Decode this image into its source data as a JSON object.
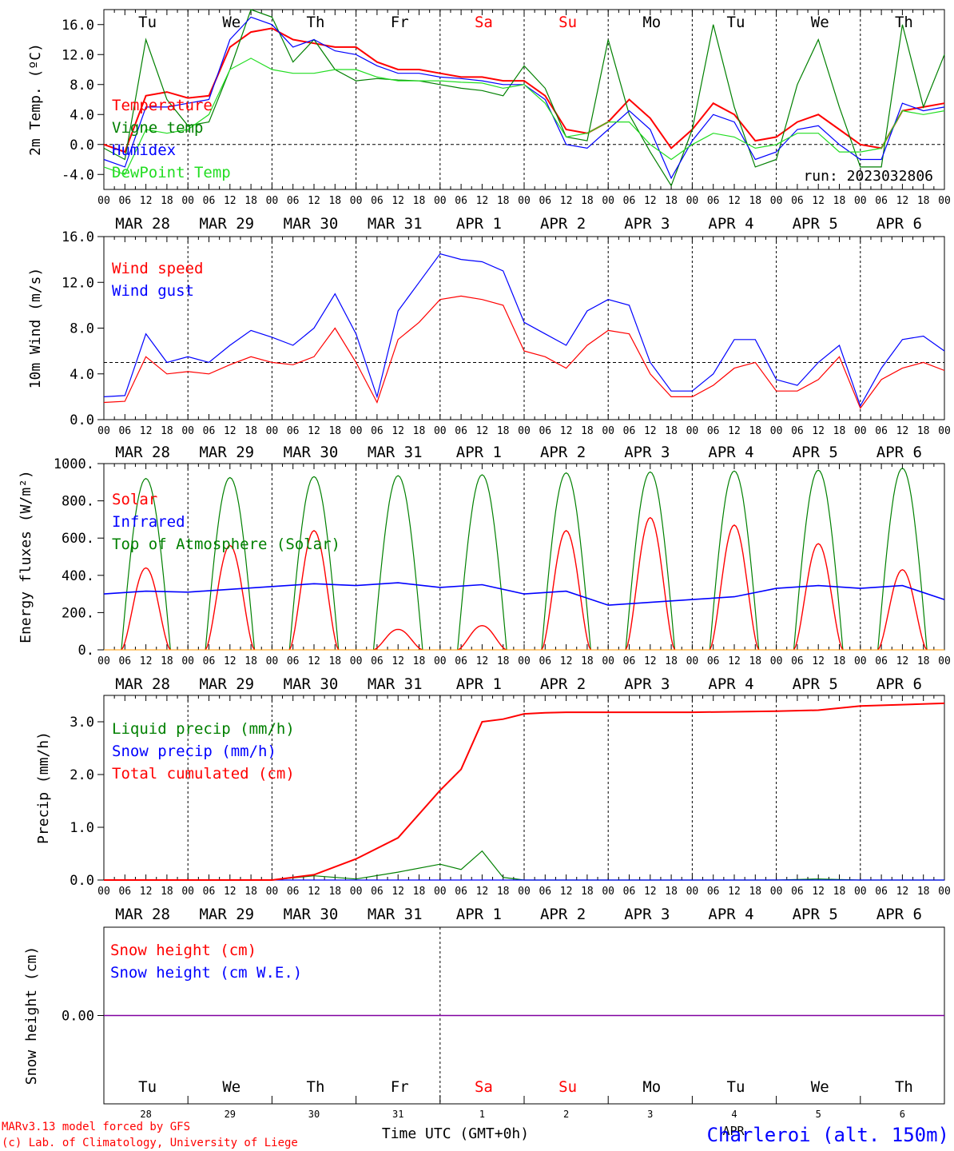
{
  "x_ticks": [
    "00",
    "06",
    "12",
    "18"
  ],
  "date_labels": [
    "MAR 28",
    "MAR 29",
    "MAR 30",
    "MAR 31",
    "APR  1",
    "APR  2",
    "APR  3",
    "APR  4",
    "APR  5",
    "APR  6"
  ],
  "weekdays": [
    "Tu",
    "We",
    "Th",
    "Fr",
    "Sa",
    "Su",
    "Mo",
    "Tu",
    "We",
    "Th"
  ],
  "weekday_colors": [
    "#000000",
    "#000000",
    "#000000",
    "#000000",
    "#ff0000",
    "#ff0000",
    "#000000",
    "#000000",
    "#000000",
    "#000000"
  ],
  "bottom_day_numbers": [
    "28",
    "29",
    "30",
    "31",
    "1",
    "2",
    "3",
    "4",
    "5",
    "6"
  ],
  "run_label": "run: 2023032806",
  "footer": {
    "line1": "MARv3.13 model forced by GFS",
    "line2": "(c) Lab. of Climatology, University of Liege",
    "xlabel": "Time UTC (GMT+0h)",
    "month": "APR",
    "station": "Charleroi (alt. 150m)"
  },
  "colors": {
    "red": "#ff0000",
    "green": "#008000",
    "blue": "#0000ff",
    "lime": "#22dd22",
    "purple": "#8000a0"
  },
  "chart_data": [
    {
      "type": "line",
      "ylabel": "2m Temp. (ºC)",
      "ylim": [
        -6,
        18
      ],
      "yticks": [
        "16.0",
        "12.0",
        "8.0",
        "4.0",
        "0.0",
        "-4.0"
      ],
      "ytick_values": [
        16,
        12,
        8,
        4,
        0,
        -4
      ],
      "hline": 0,
      "x": [
        0,
        6,
        12,
        18,
        24,
        30,
        36,
        42,
        48,
        54,
        60,
        66,
        72,
        78,
        84,
        90,
        96,
        102,
        108,
        114,
        120,
        126,
        132,
        138,
        144,
        150,
        156,
        162,
        168,
        174,
        180,
        186,
        192,
        198,
        204,
        210,
        216,
        222,
        228,
        234,
        240
      ],
      "series": [
        {
          "name": "Temperature",
          "color": "#ff0000",
          "values": [
            0,
            -1,
            6.5,
            7,
            6.2,
            6.5,
            13,
            15,
            15.5,
            14,
            13.5,
            13,
            13,
            11,
            10,
            10,
            9.5,
            9,
            9,
            8.5,
            8.5,
            6.5,
            2,
            1.5,
            3,
            6,
            3.5,
            -0.5,
            2,
            5.5,
            4,
            0.5,
            1,
            3,
            4,
            2,
            0,
            -0.5,
            4.5,
            5,
            5.5
          ]
        },
        {
          "name": "Vigne temp",
          "color": "#008000",
          "values": [
            -0.5,
            -2,
            14,
            6,
            2.5,
            3,
            10,
            18,
            17,
            11,
            14,
            10,
            8.5,
            8.8,
            8.6,
            8.5,
            8,
            7.5,
            7.2,
            6.5,
            10.5,
            7.5,
            1,
            0.5,
            14,
            4,
            -1,
            -5.5,
            2,
            16,
            5,
            -3,
            -2,
            8,
            14,
            5,
            -3,
            -3,
            16,
            5,
            12
          ]
        },
        {
          "name": "Humidex",
          "color": "#0000ff",
          "values": [
            -2,
            -3,
            5,
            5,
            5.5,
            6,
            14,
            17,
            16,
            13,
            14,
            12.5,
            12,
            10.5,
            9.5,
            9.5,
            9,
            8.8,
            8.5,
            8,
            8,
            6,
            0,
            -0.5,
            2,
            4.5,
            2,
            -4.5,
            0.5,
            4,
            3,
            -2,
            -1,
            2,
            2.5,
            0,
            -2,
            -2,
            5.5,
            4.5,
            5
          ]
        },
        {
          "name": "DewPoint Temp",
          "color": "#22dd22",
          "values": [
            -3,
            -4,
            2,
            1.5,
            2,
            4,
            10,
            11.5,
            10,
            9.5,
            9.5,
            10,
            10,
            9,
            8.5,
            8.5,
            8.5,
            8.3,
            8.2,
            7.5,
            8,
            5.5,
            1,
            1.5,
            3,
            3,
            0,
            -2,
            0,
            1.5,
            1,
            -0.5,
            0,
            1.5,
            1.5,
            -1,
            -1,
            -0.5,
            4.5,
            4,
            4.5
          ]
        }
      ]
    },
    {
      "type": "line",
      "ylabel": "10m Wind (m/s)",
      "ylim": [
        0,
        16
      ],
      "yticks": [
        "16.0",
        "12.0",
        "8.0",
        "4.0",
        "0.0"
      ],
      "ytick_values": [
        16,
        12,
        8,
        4,
        0
      ],
      "hline": 5,
      "x": [
        0,
        6,
        12,
        18,
        24,
        30,
        36,
        42,
        48,
        54,
        60,
        66,
        72,
        78,
        84,
        90,
        96,
        102,
        108,
        114,
        120,
        126,
        132,
        138,
        144,
        150,
        156,
        162,
        168,
        174,
        180,
        186,
        192,
        198,
        204,
        210,
        216,
        222,
        228,
        234,
        240
      ],
      "series": [
        {
          "name": "Wind speed",
          "color": "#ff0000",
          "values": [
            1.5,
            1.6,
            5.5,
            4,
            4.2,
            4,
            4.8,
            5.5,
            5,
            4.8,
            5.5,
            8,
            5,
            1.5,
            7,
            8.5,
            10.5,
            10.8,
            10.5,
            10,
            6,
            5.5,
            4.5,
            6.5,
            7.8,
            7.5,
            4,
            2,
            2,
            3,
            4.5,
            5,
            2.5,
            2.5,
            3.5,
            5.5,
            1,
            3.5,
            4.5,
            5,
            4.3
          ]
        },
        {
          "name": "Wind gust",
          "color": "#0000ff",
          "values": [
            2,
            2.1,
            7.5,
            5,
            5.5,
            5,
            6.5,
            7.8,
            7.2,
            6.5,
            8,
            11,
            7.5,
            2,
            9.5,
            12,
            14.5,
            14,
            13.8,
            13,
            8.5,
            7.5,
            6.5,
            9.5,
            10.5,
            10,
            5,
            2.5,
            2.5,
            4,
            7,
            7,
            3.5,
            3,
            5,
            6.5,
            1.2,
            4.5,
            7,
            7.3,
            6
          ]
        }
      ]
    },
    {
      "type": "line",
      "ylabel": "Energy fluxes (W/m²)",
      "ylim": [
        0,
        1000
      ],
      "yticks": [
        "1000.",
        "800.",
        "600.",
        "400.",
        "200.",
        "0."
      ],
      "ytick_values": [
        1000,
        800,
        600,
        400,
        200,
        0
      ],
      "series": [
        {
          "name": "Solar",
          "color": "#ff0000",
          "daily_peak": [
            440,
            560,
            640,
            110,
            130,
            640,
            710,
            670,
            570,
            430
          ]
        },
        {
          "name": "Infrared",
          "color": "#0000ff",
          "daily_mean": [
            300,
            310,
            340,
            345,
            335,
            300,
            240,
            270,
            330,
            330
          ]
        },
        {
          "name": "Top of Atmosphere (Solar)",
          "color": "#008000",
          "daily_peak": [
            920,
            925,
            930,
            935,
            940,
            950,
            955,
            960,
            965,
            975
          ]
        }
      ]
    },
    {
      "type": "line",
      "ylabel": "Precip (mm/h)",
      "ylim": [
        0,
        3.5
      ],
      "yticks": [
        "3.0",
        "2.0",
        "1.0",
        "0.0"
      ],
      "ytick_values": [
        3,
        2,
        1,
        0
      ],
      "x": [
        0,
        24,
        48,
        60,
        72,
        84,
        96,
        102,
        108,
        114,
        120,
        126,
        132,
        144,
        168,
        192,
        204,
        216,
        240
      ],
      "series": [
        {
          "name": "Liquid precip (mm/h)",
          "color": "#008000",
          "values": [
            0,
            0,
            0,
            0.08,
            0.02,
            0.15,
            0.3,
            0.2,
            0.55,
            0.05,
            0,
            0,
            0,
            0,
            0,
            0,
            0.02,
            0,
            0
          ]
        },
        {
          "name": "Snow precip (mm/h)",
          "color": "#0000ff",
          "values": [
            0,
            0,
            0,
            0,
            0,
            0,
            0,
            0,
            0,
            0,
            0,
            0,
            0,
            0,
            0,
            0,
            0,
            0,
            0
          ]
        },
        {
          "name": "Total cumulated (cm)",
          "color": "#ff0000",
          "values": [
            0,
            0,
            0,
            0.1,
            0.4,
            0.8,
            1.7,
            2.1,
            3.0,
            3.05,
            3.15,
            3.17,
            3.18,
            3.18,
            3.18,
            3.2,
            3.22,
            3.3,
            3.35
          ]
        }
      ]
    },
    {
      "type": "line",
      "ylabel": "Snow height (cm)",
      "yticks": [
        "0.00"
      ],
      "series": [
        {
          "name": "Snow height (cm)",
          "color": "#ff0000",
          "values": [
            0,
            0
          ]
        },
        {
          "name": "Snow height (cm W.E.)",
          "color": "#0000ff",
          "values": [
            0,
            0
          ]
        }
      ]
    }
  ]
}
